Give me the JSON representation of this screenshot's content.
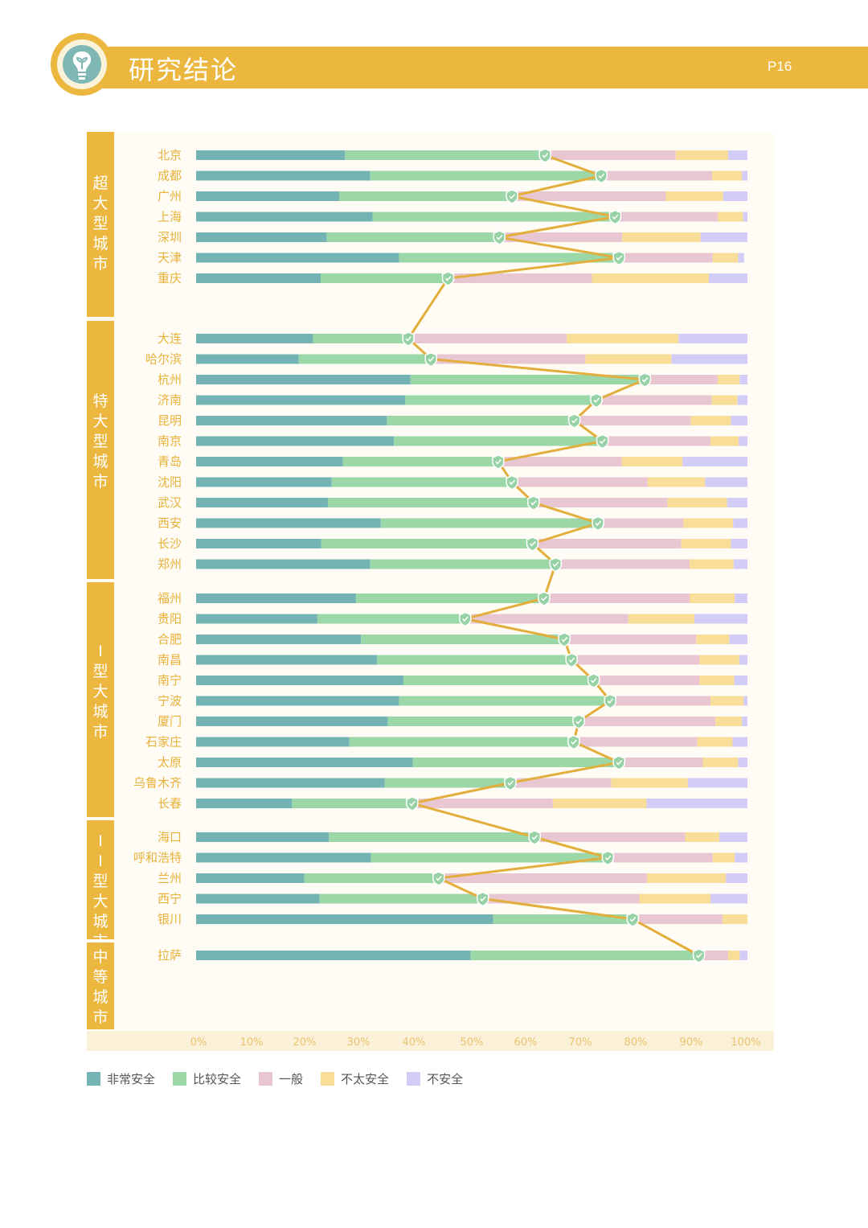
{
  "header": {
    "title": "研究结论",
    "page": "P16"
  },
  "colors": {
    "header": "#EBB73F",
    "group_band": "#EBB73F",
    "line": "#E2AE3C",
    "marker": "#96D2A6",
    "category_label": "#E8B13A",
    "tick_label": "#E8C56E"
  },
  "chart_data": {
    "type": "bar",
    "orientation": "horizontal-stacked-100",
    "title": "",
    "xlabel": "",
    "ylabel": "",
    "xlim": [
      0,
      100
    ],
    "x_ticks": [
      "0%",
      "10%",
      "20%",
      "30%",
      "40%",
      "50%",
      "60%",
      "70%",
      "80%",
      "90%",
      "100%"
    ],
    "series": [
      {
        "name": "非常安全",
        "color": "#74B3B4"
      },
      {
        "name": "比较安全",
        "color": "#9BD7A7"
      },
      {
        "name": "一般",
        "color": "#E8C7D3"
      },
      {
        "name": "不太安全",
        "color": "#F8DE99"
      },
      {
        "name": "不安全",
        "color": "#D2CDF6"
      }
    ],
    "groups": [
      {
        "name": "超大型城市",
        "cities": [
          {
            "name": "北京",
            "values": [
              27.0,
              36.3,
              23.7,
              9.5,
              3.5
            ]
          },
          {
            "name": "成都",
            "values": [
              31.6,
              41.9,
              20.1,
              5.4,
              1.0
            ]
          },
          {
            "name": "广州",
            "values": [
              26.0,
              31.3,
              27.9,
              10.4,
              4.4
            ]
          },
          {
            "name": "上海",
            "values": [
              32.0,
              44.0,
              18.6,
              4.6,
              0.8
            ]
          },
          {
            "name": "深圳",
            "values": [
              23.7,
              31.3,
              22.3,
              14.2,
              8.5
            ]
          },
          {
            "name": "天津",
            "values": [
              36.8,
              39.9,
              17.0,
              4.6,
              1.1
            ]
          },
          {
            "name": "重庆",
            "values": [
              22.6,
              23.1,
              26.1,
              21.2,
              7.0
            ]
          }
        ]
      },
      {
        "name": "特大型城市",
        "cities": [
          {
            "name": "大连",
            "values": [
              21.2,
              17.3,
              28.7,
              20.3,
              12.5
            ]
          },
          {
            "name": "哈尔滨",
            "values": [
              18.6,
              24.0,
              28.0,
              15.6,
              13.8
            ]
          },
          {
            "name": "杭州",
            "values": [
              38.9,
              42.5,
              13.2,
              4.0,
              1.4
            ]
          },
          {
            "name": "济南",
            "values": [
              37.9,
              34.7,
              20.9,
              4.7,
              1.8
            ]
          },
          {
            "name": "昆明",
            "values": [
              34.6,
              34.0,
              21.1,
              7.3,
              3.0
            ]
          },
          {
            "name": "南京",
            "values": [
              35.9,
              37.8,
              19.6,
              5.1,
              1.6
            ]
          },
          {
            "name": "青岛",
            "values": [
              26.6,
              28.2,
              22.4,
              11.0,
              11.8
            ]
          },
          {
            "name": "沈阳",
            "values": [
              24.6,
              32.7,
              24.6,
              10.4,
              7.7
            ]
          },
          {
            "name": "武汉",
            "values": [
              23.9,
              37.3,
              24.3,
              10.8,
              3.7
            ]
          },
          {
            "name": "西安",
            "values": [
              33.5,
              39.4,
              15.5,
              9.0,
              2.6
            ]
          },
          {
            "name": "长沙",
            "values": [
              22.7,
              38.3,
              27.0,
              9.0,
              3.0
            ]
          },
          {
            "name": "郑州",
            "values": [
              31.6,
              33.6,
              24.3,
              8.0,
              2.5
            ]
          }
        ]
      },
      {
        "name": "I型大城市",
        "cities": [
          {
            "name": "福州",
            "values": [
              29.0,
              34.1,
              26.4,
              8.2,
              2.3
            ]
          },
          {
            "name": "贵阳",
            "values": [
              22.0,
              26.8,
              29.6,
              12.0,
              9.6
            ]
          },
          {
            "name": "合肥",
            "values": [
              29.9,
              36.9,
              23.9,
              6.0,
              3.3
            ]
          },
          {
            "name": "南昌",
            "values": [
              32.8,
              35.3,
              23.2,
              7.2,
              1.5
            ]
          },
          {
            "name": "南宁",
            "values": [
              37.6,
              34.5,
              19.2,
              6.3,
              2.4
            ]
          },
          {
            "name": "宁波",
            "values": [
              36.8,
              38.3,
              18.2,
              6.0,
              0.7
            ]
          },
          {
            "name": "厦门",
            "values": [
              34.8,
              34.6,
              24.8,
              4.8,
              1.0
            ]
          },
          {
            "name": "石家庄",
            "values": [
              27.8,
              40.7,
              22.4,
              6.4,
              2.7
            ]
          },
          {
            "name": "太原",
            "values": [
              39.3,
              37.4,
              15.2,
              6.4,
              1.7
            ]
          },
          {
            "name": "乌鲁木齐",
            "values": [
              34.2,
              22.8,
              18.3,
              13.9,
              10.8
            ]
          },
          {
            "name": "长春",
            "values": [
              17.4,
              21.8,
              25.5,
              17.0,
              18.3
            ]
          }
        ]
      },
      {
        "name": "II型大城市",
        "cities": [
          {
            "name": "海口",
            "values": [
              24.1,
              37.3,
              27.3,
              6.2,
              5.1
            ]
          },
          {
            "name": "呼和浩特",
            "values": [
              31.7,
              43.0,
              19.0,
              4.0,
              2.3
            ]
          },
          {
            "name": "兰州",
            "values": [
              19.6,
              24.4,
              37.8,
              14.3,
              3.9
            ]
          },
          {
            "name": "西宁",
            "values": [
              22.4,
              29.6,
              28.4,
              12.9,
              6.7
            ]
          },
          {
            "name": "银川",
            "values": [
              53.9,
              25.3,
              16.3,
              4.5,
              0.0
            ]
          }
        ]
      },
      {
        "name": "中等城市",
        "cities": [
          {
            "name": "拉萨",
            "values": [
              49.8,
              41.4,
              5.3,
              2.1,
              1.4
            ]
          }
        ]
      }
    ]
  }
}
